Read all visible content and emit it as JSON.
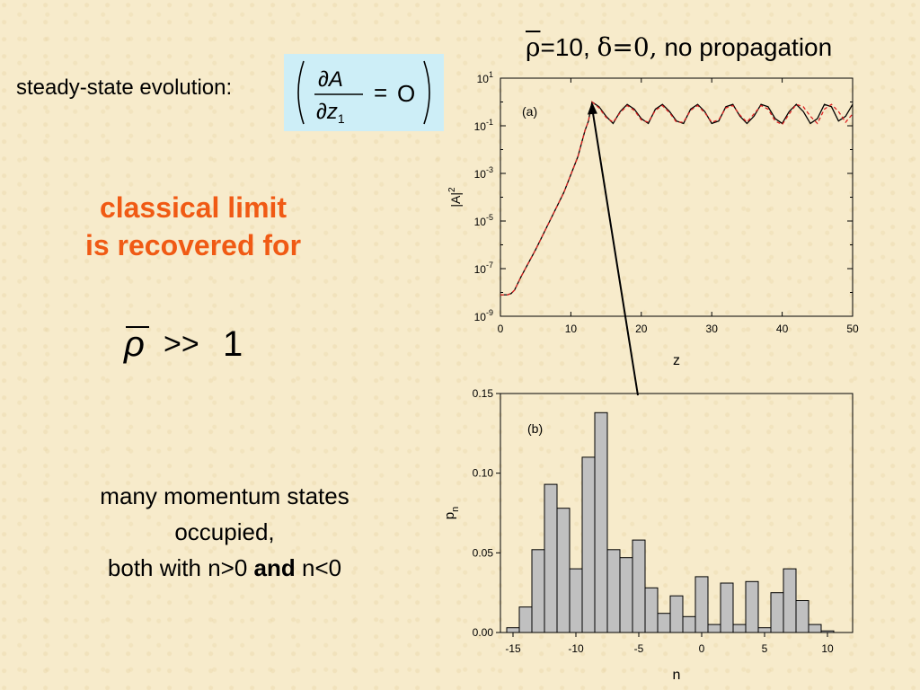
{
  "slide": {
    "steady_state_label": "steady-state evolution:",
    "title_rho": "ρ",
    "title_rest": "=10,",
    "title_delta": "δ=0,",
    "title_tail": " no propagation",
    "classical_line1": "classical limit",
    "classical_line2": "is recovered for",
    "many_line1": "many momentum states",
    "many_line2": "occupied,",
    "many_line3_a": "both with n>0 ",
    "many_line3_bold": "and",
    "many_line3_b": " n<0",
    "colors": {
      "accent": "#f05a14",
      "equation_box": "#cdeef7",
      "background": "#f7ebcb",
      "bars": "#c0c0c0",
      "dashed_curve": "#dd2222"
    }
  },
  "chart_data": [
    {
      "type": "line",
      "panel_label": "(a)",
      "xlabel": "z",
      "ylabel": "|A|2",
      "xlim": [
        0,
        50
      ],
      "ylim_log10": [
        -9,
        1
      ],
      "yscale": "log",
      "x_ticks": [
        "0",
        "10",
        "20",
        "30",
        "40",
        "50"
      ],
      "y_tick_exponents": [
        "1",
        "-1",
        "-3",
        "-5",
        "-7",
        "-9"
      ],
      "series": [
        {
          "style": "solid",
          "x": [
            0,
            1,
            1.5,
            2,
            3,
            5,
            7,
            9,
            11,
            12,
            12.5,
            13,
            14,
            15,
            16,
            17,
            18,
            19,
            20,
            21,
            22,
            23,
            24,
            25,
            26,
            27,
            28,
            29,
            30,
            31,
            32,
            33,
            34,
            35,
            36,
            37,
            38,
            39,
            40,
            41,
            42,
            43,
            44,
            45,
            46,
            47,
            48,
            49,
            50
          ],
          "log10y": [
            -8.1,
            -8.1,
            -8.05,
            -7.9,
            -7.3,
            -6.2,
            -5.0,
            -3.8,
            -2.3,
            -1.2,
            -0.8,
            0.0,
            -0.2,
            -0.6,
            -0.9,
            -0.4,
            -0.1,
            -0.3,
            -0.7,
            -0.9,
            -0.3,
            -0.1,
            -0.4,
            -0.8,
            -0.9,
            -0.3,
            -0.1,
            -0.4,
            -0.9,
            -0.8,
            -0.2,
            -0.1,
            -0.6,
            -0.9,
            -0.6,
            -0.1,
            -0.2,
            -0.7,
            -0.9,
            -0.4,
            -0.1,
            -0.4,
            -0.9,
            -0.7,
            -0.1,
            -0.2,
            -0.8,
            -0.6,
            -0.1
          ]
        },
        {
          "style": "dashed",
          "x": [
            0,
            1,
            1.5,
            2,
            3,
            5,
            7,
            9,
            11,
            12,
            12.5,
            13,
            14,
            15,
            16,
            17,
            18,
            19,
            20,
            21,
            22,
            23,
            24,
            25,
            26,
            27,
            28,
            29,
            30,
            31,
            32,
            33,
            34,
            35,
            36,
            37,
            38,
            39,
            40,
            41,
            42,
            43,
            44,
            45,
            46,
            47,
            48,
            49,
            50
          ],
          "log10y": [
            -8.1,
            -8.1,
            -8.05,
            -7.9,
            -7.3,
            -6.2,
            -5.0,
            -3.8,
            -2.3,
            -1.2,
            -0.8,
            0.0,
            -0.25,
            -0.65,
            -0.85,
            -0.45,
            -0.15,
            -0.35,
            -0.75,
            -0.85,
            -0.35,
            -0.15,
            -0.45,
            -0.85,
            -0.85,
            -0.35,
            -0.15,
            -0.45,
            -0.85,
            -0.75,
            -0.25,
            -0.15,
            -0.55,
            -0.85,
            -0.5,
            -0.15,
            -0.3,
            -0.8,
            -0.95,
            -0.5,
            -0.1,
            -0.2,
            -0.6,
            -0.9,
            -0.3,
            -0.1,
            -0.4,
            -0.85,
            -0.5
          ]
        }
      ]
    },
    {
      "type": "bar",
      "panel_label": "(b)",
      "xlabel": "n",
      "ylabel": "pn",
      "xlim": [
        -16,
        12
      ],
      "ylim": [
        0,
        0.15
      ],
      "x_ticks": [
        "-15",
        "-10",
        "-5",
        "0",
        "5",
        "10"
      ],
      "y_ticks": [
        "0.00",
        "0.05",
        "0.10",
        "0.15"
      ],
      "categories": [
        -15,
        -14,
        -13,
        -12,
        -11,
        -10,
        -9,
        -8,
        -7,
        -6,
        -5,
        -4,
        -3,
        -2,
        -1,
        0,
        1,
        2,
        3,
        4,
        5,
        6,
        7,
        8,
        9,
        10,
        11
      ],
      "values": [
        0.003,
        0.016,
        0.052,
        0.093,
        0.078,
        0.04,
        0.11,
        0.138,
        0.052,
        0.047,
        0.058,
        0.028,
        0.012,
        0.023,
        0.01,
        0.035,
        0.005,
        0.031,
        0.005,
        0.032,
        0.003,
        0.025,
        0.04,
        0.02,
        0.005,
        0.001,
        0.0
      ]
    }
  ]
}
